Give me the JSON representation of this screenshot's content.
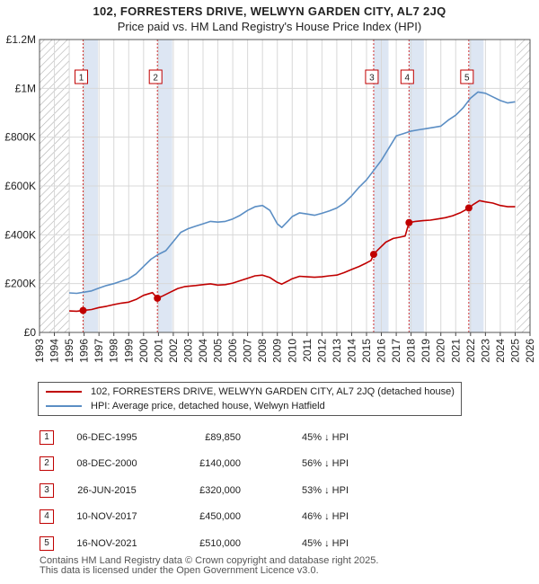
{
  "header": {
    "title_line1": "102, FORRESTERS DRIVE, WELWYN GARDEN CITY, AL7 2JQ",
    "title_line2": "Price paid vs. HM Land Registry's House Price Index (HPI)"
  },
  "colors": {
    "property": "#c00000",
    "hpi": "#5b8ec4",
    "band": "#dde6f3",
    "grid": "#d8d8d8",
    "marker_line": "#d03030"
  },
  "chart_data": {
    "type": "line",
    "title": "Price paid vs. HM Land Registry's House Price Index (HPI)",
    "xlim": [
      1993,
      2026
    ],
    "ylim": [
      0,
      1200000
    ],
    "x_ticks": [
      1993,
      1994,
      1995,
      1996,
      1997,
      1998,
      1999,
      2000,
      2001,
      2002,
      2003,
      2004,
      2005,
      2006,
      2007,
      2008,
      2009,
      2010,
      2011,
      2012,
      2013,
      2014,
      2015,
      2016,
      2017,
      2018,
      2019,
      2020,
      2021,
      2022,
      2023,
      2024,
      2025,
      2026
    ],
    "y_ticks": [
      {
        "value": 0,
        "label": "£0"
      },
      {
        "value": 200000,
        "label": "£200K"
      },
      {
        "value": 400000,
        "label": "£400K"
      },
      {
        "value": 600000,
        "label": "£600K"
      },
      {
        "value": 800000,
        "label": "£800K"
      },
      {
        "value": 1000000,
        "label": "£1M"
      },
      {
        "value": 1200000,
        "label": "£1.2M"
      }
    ],
    "hatched_ranges": [
      [
        1993,
        1995.0
      ],
      [
        2025.1,
        2026
      ]
    ],
    "series": [
      {
        "name": "102, FORRESTERS DRIVE, WELWYN GARDEN CITY, AL7 2JQ (detached house)",
        "color": "#c00000",
        "points": [
          [
            1995.0,
            88000
          ],
          [
            1995.5,
            87000
          ],
          [
            1995.93,
            89850
          ],
          [
            1996.5,
            94000
          ],
          [
            1997,
            102000
          ],
          [
            1997.5,
            107000
          ],
          [
            1998,
            114000
          ],
          [
            1998.5,
            120000
          ],
          [
            1999,
            124000
          ],
          [
            1999.5,
            135000
          ],
          [
            2000,
            152000
          ],
          [
            2000.6,
            163000
          ],
          [
            2000.93,
            140000
          ],
          [
            2001.3,
            150000
          ],
          [
            2001.8,
            165000
          ],
          [
            2002.3,
            180000
          ],
          [
            2002.8,
            188000
          ],
          [
            2003.5,
            192000
          ],
          [
            2004,
            196000
          ],
          [
            2004.5,
            199000
          ],
          [
            2005,
            194000
          ],
          [
            2005.5,
            196000
          ],
          [
            2006,
            202000
          ],
          [
            2006.5,
            212000
          ],
          [
            2007,
            222000
          ],
          [
            2007.5,
            232000
          ],
          [
            2008,
            235000
          ],
          [
            2008.5,
            225000
          ],
          [
            2009,
            205000
          ],
          [
            2009.3,
            198000
          ],
          [
            2009.7,
            210000
          ],
          [
            2010,
            220000
          ],
          [
            2010.5,
            230000
          ],
          [
            2011,
            228000
          ],
          [
            2011.5,
            226000
          ],
          [
            2012,
            228000
          ],
          [
            2012.5,
            232000
          ],
          [
            2013,
            235000
          ],
          [
            2013.5,
            245000
          ],
          [
            2014,
            258000
          ],
          [
            2014.5,
            270000
          ],
          [
            2015,
            285000
          ],
          [
            2015.3,
            295000
          ],
          [
            2015.48,
            320000
          ],
          [
            2015.8,
            340000
          ],
          [
            2016.3,
            370000
          ],
          [
            2016.8,
            385000
          ],
          [
            2017.2,
            390000
          ],
          [
            2017.6,
            395000
          ],
          [
            2017.86,
            450000
          ],
          [
            2018.3,
            455000
          ],
          [
            2018.8,
            458000
          ],
          [
            2019.3,
            460000
          ],
          [
            2019.8,
            465000
          ],
          [
            2020.3,
            470000
          ],
          [
            2020.8,
            478000
          ],
          [
            2021.3,
            490000
          ],
          [
            2021.6,
            500000
          ],
          [
            2021.88,
            510000
          ],
          [
            2022.2,
            525000
          ],
          [
            2022.6,
            540000
          ],
          [
            2023,
            535000
          ],
          [
            2023.5,
            530000
          ],
          [
            2024,
            520000
          ],
          [
            2024.5,
            515000
          ],
          [
            2025.0,
            515000
          ]
        ]
      },
      {
        "name": "HPI: Average price, detached house, Welwyn Hatfield",
        "color": "#5b8ec4",
        "points": [
          [
            1995.0,
            162000
          ],
          [
            1995.5,
            160000
          ],
          [
            1996,
            165000
          ],
          [
            1996.5,
            170000
          ],
          [
            1997,
            182000
          ],
          [
            1997.5,
            192000
          ],
          [
            1998,
            200000
          ],
          [
            1998.5,
            210000
          ],
          [
            1999,
            220000
          ],
          [
            1999.5,
            240000
          ],
          [
            2000,
            270000
          ],
          [
            2000.5,
            300000
          ],
          [
            2001,
            320000
          ],
          [
            2001.5,
            335000
          ],
          [
            2002,
            372000
          ],
          [
            2002.5,
            410000
          ],
          [
            2003,
            425000
          ],
          [
            2003.5,
            435000
          ],
          [
            2004,
            445000
          ],
          [
            2004.5,
            455000
          ],
          [
            2005,
            452000
          ],
          [
            2005.5,
            455000
          ],
          [
            2006,
            465000
          ],
          [
            2006.5,
            480000
          ],
          [
            2007,
            500000
          ],
          [
            2007.5,
            515000
          ],
          [
            2008,
            520000
          ],
          [
            2008.5,
            500000
          ],
          [
            2009,
            445000
          ],
          [
            2009.3,
            430000
          ],
          [
            2009.7,
            455000
          ],
          [
            2010,
            475000
          ],
          [
            2010.5,
            490000
          ],
          [
            2011,
            485000
          ],
          [
            2011.5,
            480000
          ],
          [
            2012,
            488000
          ],
          [
            2012.5,
            498000
          ],
          [
            2013,
            510000
          ],
          [
            2013.5,
            530000
          ],
          [
            2014,
            560000
          ],
          [
            2014.5,
            595000
          ],
          [
            2015,
            625000
          ],
          [
            2015.5,
            665000
          ],
          [
            2016,
            705000
          ],
          [
            2016.5,
            755000
          ],
          [
            2017,
            805000
          ],
          [
            2017.5,
            815000
          ],
          [
            2018,
            825000
          ],
          [
            2018.5,
            830000
          ],
          [
            2019,
            835000
          ],
          [
            2019.5,
            840000
          ],
          [
            2020,
            845000
          ],
          [
            2020.5,
            870000
          ],
          [
            2021,
            890000
          ],
          [
            2021.5,
            920000
          ],
          [
            2022,
            960000
          ],
          [
            2022.5,
            985000
          ],
          [
            2023,
            980000
          ],
          [
            2023.5,
            965000
          ],
          [
            2024,
            950000
          ],
          [
            2024.5,
            940000
          ],
          [
            2025.0,
            945000
          ]
        ]
      }
    ],
    "transactions": [
      {
        "num": "1",
        "x": 1995.93,
        "value": 89850
      },
      {
        "num": "2",
        "x": 2000.93,
        "value": 140000
      },
      {
        "num": "3",
        "x": 2015.48,
        "value": 320000
      },
      {
        "num": "4",
        "x": 2017.86,
        "value": 450000
      },
      {
        "num": "5",
        "x": 2021.88,
        "value": 510000
      }
    ]
  },
  "legend": {
    "property_label": "102, FORRESTERS DRIVE, WELWYN GARDEN CITY, AL7 2JQ (detached house)",
    "hpi_label": "HPI: Average price, detached house, Welwyn Hatfield"
  },
  "transactions_table": [
    {
      "num": "1",
      "date": "06-DEC-1995",
      "price": "£89,850",
      "hpi": "45% ↓ HPI"
    },
    {
      "num": "2",
      "date": "08-DEC-2000",
      "price": "£140,000",
      "hpi": "56% ↓ HPI"
    },
    {
      "num": "3",
      "date": "26-JUN-2015",
      "price": "£320,000",
      "hpi": "53% ↓ HPI"
    },
    {
      "num": "4",
      "date": "10-NOV-2017",
      "price": "£450,000",
      "hpi": "46% ↓ HPI"
    },
    {
      "num": "5",
      "date": "16-NOV-2021",
      "price": "£510,000",
      "hpi": "45% ↓ HPI"
    }
  ],
  "footer": {
    "line1": "Contains HM Land Registry data © Crown copyright and database right 2025.",
    "line2": "This data is licensed under the Open Government Licence v3.0."
  }
}
